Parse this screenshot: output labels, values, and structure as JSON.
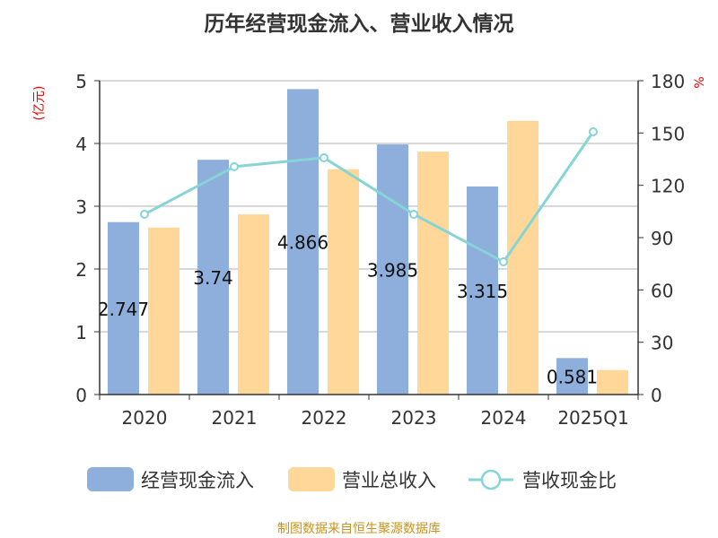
{
  "chart_data": {
    "type": "bar",
    "title": "历年经营现金流入、营业收入情况",
    "categories": [
      "2020",
      "2021",
      "2022",
      "2023",
      "2024",
      "2025Q1"
    ],
    "y_left": {
      "label": "(亿元)",
      "ylim": [
        0,
        5
      ],
      "ticks": [
        "0",
        "1",
        "2",
        "3",
        "4",
        "5"
      ]
    },
    "y_right": {
      "label": "%",
      "ylim": [
        0,
        180
      ],
      "ticks": [
        "0",
        "30",
        "60",
        "90",
        "120",
        "150",
        "180"
      ]
    },
    "series": [
      {
        "name": "经营现金流入",
        "type": "bar",
        "axis": "left",
        "color": "#8eaedb",
        "values": [
          2.747,
          3.74,
          4.866,
          3.985,
          3.315,
          0.581
        ],
        "labels": [
          "2.747",
          "3.74",
          "4.866",
          "3.985",
          "3.315",
          "0.581"
        ]
      },
      {
        "name": "营业总收入",
        "type": "bar",
        "axis": "left",
        "color": "#fed799",
        "values": [
          2.66,
          2.87,
          3.59,
          3.87,
          4.36,
          0.39
        ]
      },
      {
        "name": "营收现金比",
        "type": "line",
        "axis": "right",
        "color": "#86d4d6",
        "values": [
          103.4,
          130.7,
          135.8,
          103.4,
          76.1,
          150.7
        ]
      }
    ],
    "grid": true,
    "legend": "bottom"
  },
  "footer": "制图数据来自恒生聚源数据库"
}
